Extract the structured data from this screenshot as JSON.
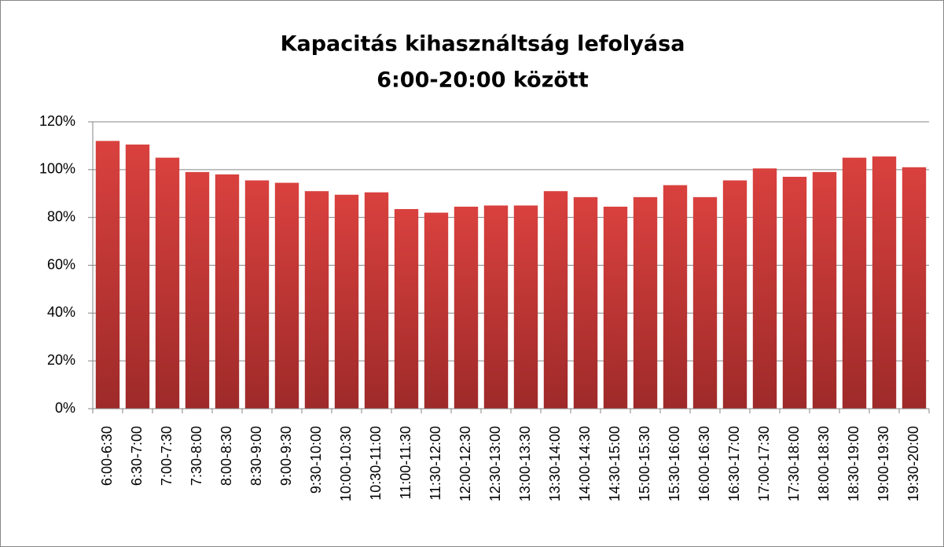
{
  "chart_data": {
    "type": "bar",
    "title": [
      "Kapacitás kihasználtság lefolyása",
      "6:00-20:00 között"
    ],
    "categories": [
      "6:00-6:30",
      "6:30-7:00",
      "7:00-7:30",
      "7:30-8:00",
      "8:00-8:30",
      "8:30-9:00",
      "9:00-9:30",
      "9:30-10:00",
      "10:00-10:30",
      "10:30-11:00",
      "11:00-11:30",
      "11:30-12:00",
      "12:00-12:30",
      "12:30-13:00",
      "13:00-13:30",
      "13:30-14:00",
      "14:00-14:30",
      "14:30-15:00",
      "15:00-15:30",
      "15:30-16:00",
      "16:00-16:30",
      "16:30-17:00",
      "17:00-17:30",
      "17:30-18:00",
      "18:00-18:30",
      "18:30-19:00",
      "19:00-19:30",
      "19:30-20:00"
    ],
    "values": [
      112,
      110.5,
      105,
      99,
      98,
      95.5,
      94.5,
      91,
      89.5,
      90.5,
      83.5,
      82,
      84.5,
      85,
      85,
      91,
      88.5,
      84.5,
      88.5,
      93.5,
      88.5,
      95.5,
      100.5,
      97,
      99,
      105,
      105.5,
      101
    ],
    "color": "#c0393a",
    "ylim": [
      0,
      120
    ],
    "yticks": [
      {
        "value": 0,
        "label": "0%"
      },
      {
        "value": 20,
        "label": "20%"
      },
      {
        "value": 40,
        "label": "40%"
      },
      {
        "value": 60,
        "label": "60%"
      },
      {
        "value": 80,
        "label": "80%"
      },
      {
        "value": 100,
        "label": "100%"
      },
      {
        "value": 120,
        "label": "120%"
      }
    ],
    "grid": true
  }
}
